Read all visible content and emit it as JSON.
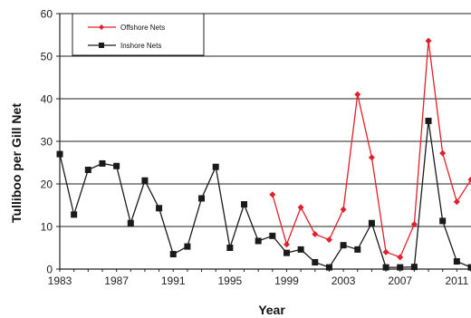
{
  "chart_data": {
    "type": "line",
    "title": "",
    "xlabel": "Year",
    "ylabel": "Tulliboo per Gill Net",
    "xlim": [
      1983,
      2012
    ],
    "ylim": [
      0,
      60
    ],
    "x_ticks": [
      1983,
      1987,
      1991,
      1995,
      1999,
      2003,
      2007,
      2011
    ],
    "x_tick_labels": [
      "1983",
      "1987",
      "1991",
      "1995",
      "1999",
      "2003",
      "2007",
      "2011"
    ],
    "y_ticks": [
      0,
      10,
      20,
      30,
      40,
      50,
      60
    ],
    "y_tick_labels": [
      "0",
      "10",
      "20",
      "30",
      "40",
      "50",
      "60"
    ],
    "grid": "horizontal",
    "legend_position": "top-left",
    "series": [
      {
        "name": "Offshore Nets",
        "color": "#e0202a",
        "marker": "diamond",
        "x": [
          1998,
          1999,
          2000,
          2001,
          2002,
          2003,
          2004,
          2005,
          2006,
          2007,
          2008,
          2009,
          2010,
          2011,
          2012
        ],
        "y": [
          17.5,
          5.8,
          14.5,
          8.2,
          6.9,
          14.0,
          41.0,
          26.2,
          4.0,
          2.8,
          10.5,
          53.6,
          27.2,
          15.8,
          21.0
        ]
      },
      {
        "name": "Inshore Nets",
        "color": "#1a1a1a",
        "marker": "square",
        "x": [
          1983,
          1984,
          1985,
          1986,
          1987,
          1988,
          1989,
          1990,
          1991,
          1992,
          1993,
          1994,
          1995,
          1996,
          1997,
          1998,
          1999,
          2000,
          2001,
          2002,
          2003,
          2004,
          2005,
          2006,
          2007,
          2008,
          2009,
          2010,
          2011,
          2012
        ],
        "y": [
          27.0,
          12.8,
          23.3,
          24.8,
          24.2,
          10.8,
          20.8,
          14.3,
          3.5,
          5.3,
          16.6,
          24.0,
          5.0,
          15.2,
          6.6,
          7.8,
          3.8,
          4.6,
          1.6,
          0.4,
          5.6,
          4.6,
          10.8,
          0.4,
          0.4,
          0.5,
          34.8,
          11.3,
          1.8,
          0.4
        ]
      }
    ]
  }
}
